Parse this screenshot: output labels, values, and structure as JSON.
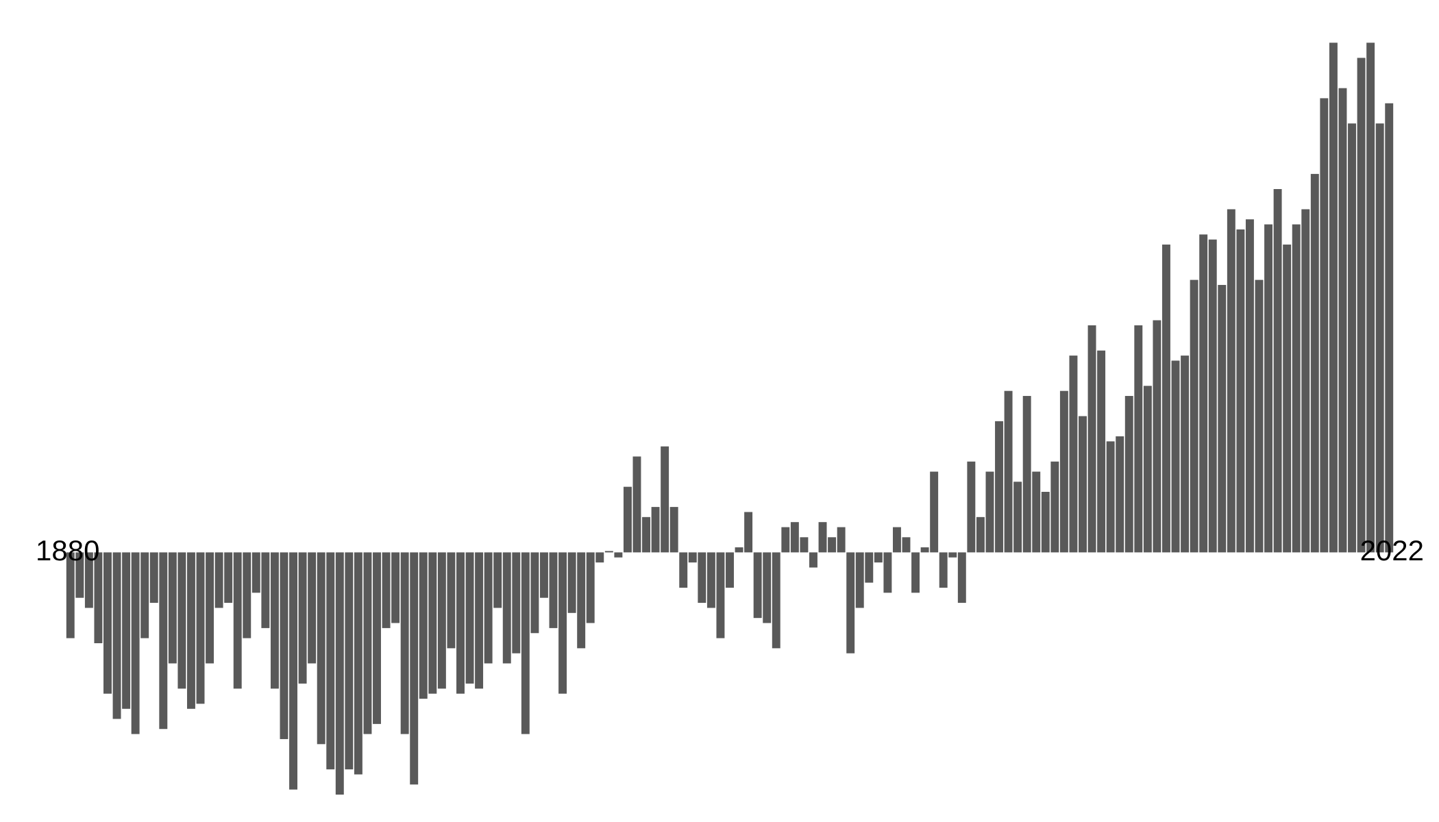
{
  "chart_data": {
    "type": "bar",
    "x_start_label": "1880",
    "x_end_label": "2022",
    "x_start": 1880,
    "x_end": 2022,
    "ylim": [
      -0.48,
      1.02
    ],
    "grid": false,
    "bar_color": "#595959",
    "label_color": "#000000",
    "years": [
      1880,
      1881,
      1882,
      1883,
      1884,
      1885,
      1886,
      1887,
      1888,
      1889,
      1890,
      1891,
      1892,
      1893,
      1894,
      1895,
      1896,
      1897,
      1898,
      1899,
      1900,
      1901,
      1902,
      1903,
      1904,
      1905,
      1906,
      1907,
      1908,
      1909,
      1910,
      1911,
      1912,
      1913,
      1914,
      1915,
      1916,
      1917,
      1918,
      1919,
      1920,
      1921,
      1922,
      1923,
      1924,
      1925,
      1926,
      1927,
      1928,
      1929,
      1930,
      1931,
      1932,
      1933,
      1934,
      1935,
      1936,
      1937,
      1938,
      1939,
      1940,
      1941,
      1942,
      1943,
      1944,
      1945,
      1946,
      1947,
      1948,
      1949,
      1950,
      1951,
      1952,
      1953,
      1954,
      1955,
      1956,
      1957,
      1958,
      1959,
      1960,
      1961,
      1962,
      1963,
      1964,
      1965,
      1966,
      1967,
      1968,
      1969,
      1970,
      1971,
      1972,
      1973,
      1974,
      1975,
      1976,
      1977,
      1978,
      1979,
      1980,
      1981,
      1982,
      1983,
      1984,
      1985,
      1986,
      1987,
      1988,
      1989,
      1990,
      1991,
      1992,
      1993,
      1994,
      1995,
      1996,
      1997,
      1998,
      1999,
      2000,
      2001,
      2002,
      2003,
      2004,
      2005,
      2006,
      2007,
      2008,
      2009,
      2010,
      2011,
      2012,
      2013,
      2014,
      2015,
      2016,
      2017,
      2018,
      2019,
      2020,
      2021,
      2022
    ],
    "values": [
      -0.17,
      -0.09,
      -0.11,
      -0.18,
      -0.28,
      -0.33,
      -0.31,
      -0.36,
      -0.17,
      -0.1,
      -0.35,
      -0.22,
      -0.27,
      -0.31,
      -0.3,
      -0.22,
      -0.11,
      -0.1,
      -0.27,
      -0.17,
      -0.08,
      -0.15,
      -0.27,
      -0.37,
      -0.47,
      -0.26,
      -0.22,
      -0.38,
      -0.43,
      -0.48,
      -0.43,
      -0.44,
      -0.36,
      -0.34,
      -0.15,
      -0.14,
      -0.36,
      -0.46,
      -0.29,
      -0.28,
      -0.27,
      -0.19,
      -0.28,
      -0.26,
      -0.27,
      -0.22,
      -0.11,
      -0.22,
      -0.2,
      -0.36,
      -0.16,
      -0.09,
      -0.15,
      -0.28,
      -0.12,
      -0.19,
      -0.14,
      -0.02,
      0.0,
      -0.01,
      0.13,
      0.19,
      0.07,
      0.09,
      0.21,
      0.09,
      -0.07,
      -0.02,
      -0.1,
      -0.11,
      -0.17,
      -0.07,
      0.01,
      0.08,
      -0.13,
      -0.14,
      -0.19,
      0.05,
      0.06,
      0.03,
      -0.03,
      0.06,
      0.03,
      0.05,
      -0.2,
      -0.11,
      -0.06,
      -0.02,
      -0.08,
      0.05,
      0.03,
      -0.08,
      0.01,
      0.16,
      -0.07,
      -0.01,
      -0.1,
      0.18,
      0.07,
      0.16,
      0.26,
      0.32,
      0.14,
      0.31,
      0.16,
      0.12,
      0.18,
      0.32,
      0.39,
      0.27,
      0.45,
      0.4,
      0.22,
      0.23,
      0.31,
      0.45,
      0.33,
      0.46,
      0.61,
      0.38,
      0.39,
      0.54,
      0.63,
      0.62,
      0.53,
      0.68,
      0.64,
      0.66,
      0.54,
      0.65,
      0.72,
      0.61,
      0.65,
      0.68,
      0.75,
      0.9,
      1.01,
      0.92,
      0.85,
      0.98,
      1.01,
      0.85,
      0.89
    ]
  }
}
